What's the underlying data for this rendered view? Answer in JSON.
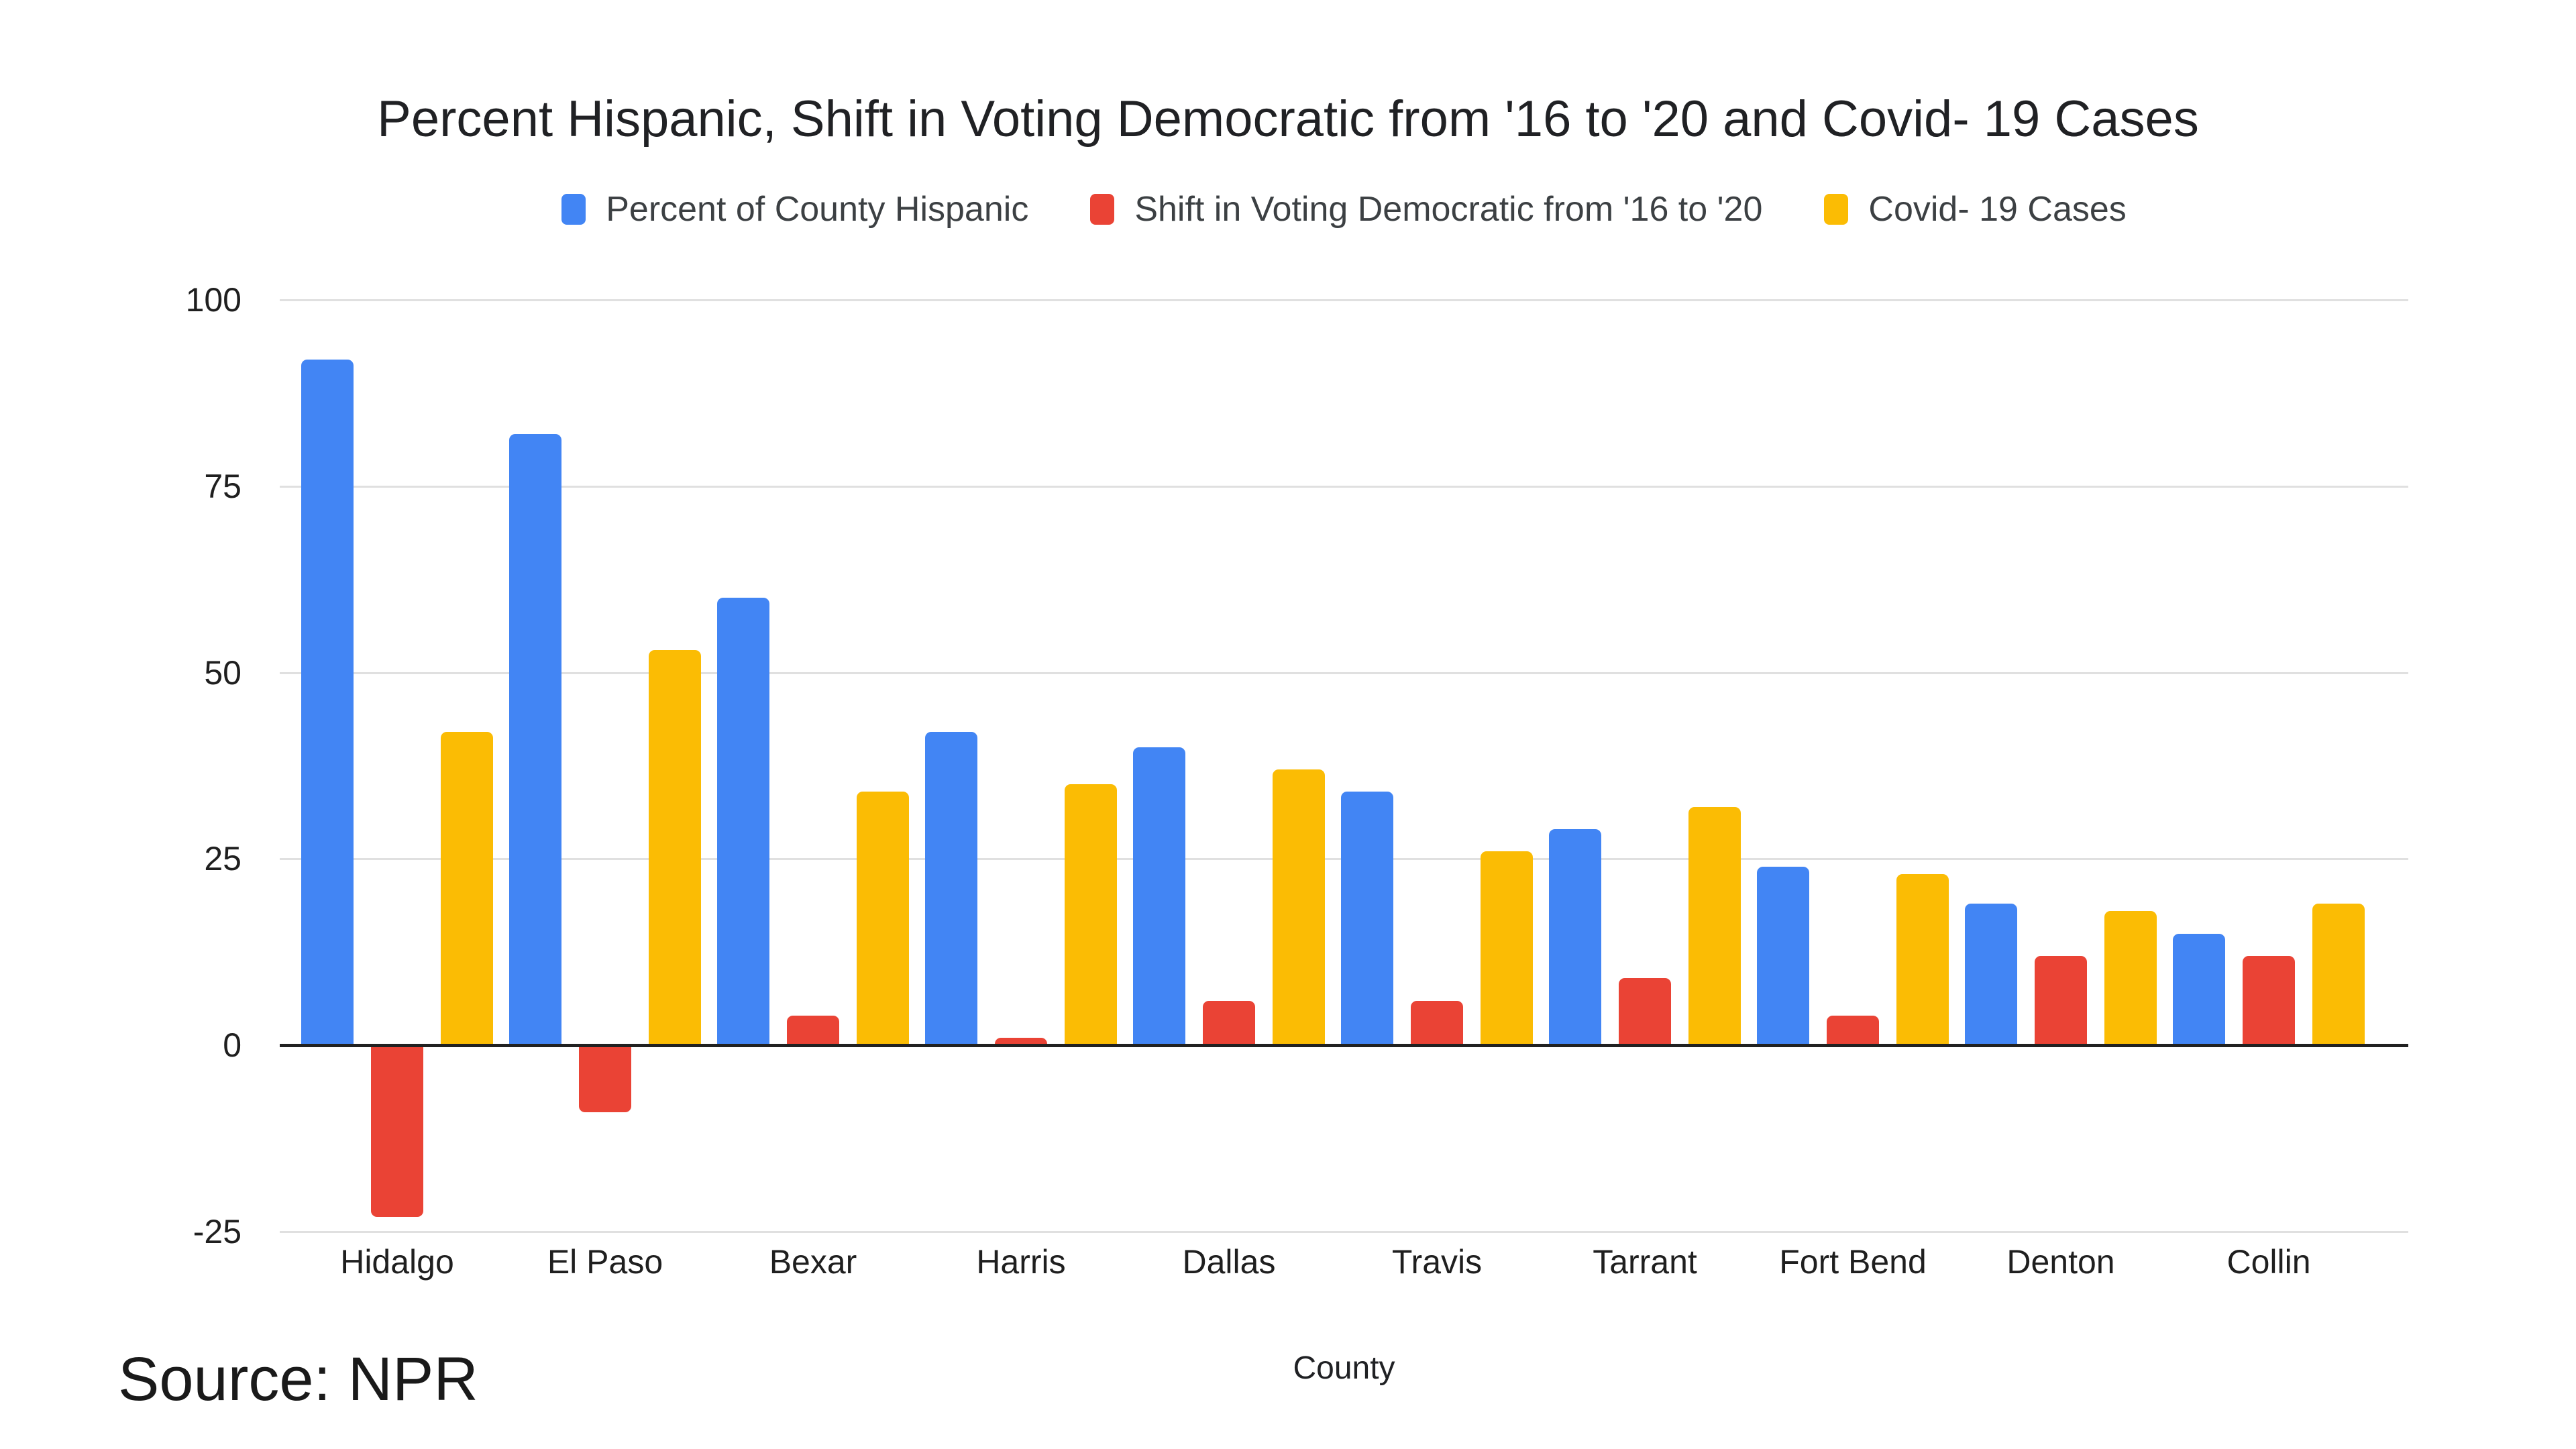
{
  "title": "Percent Hispanic, Shift in Voting Democratic from '16 to '20 and Covid- 19 Cases",
  "source_note": "Source: NPR",
  "colors": {
    "background": "#ffffff",
    "blue": "#4285F4",
    "red": "#EA4335",
    "yellow": "#FBBC04",
    "gridline": "#e0e0e0",
    "axis": "#212121",
    "text": "#1f1f1f"
  },
  "chart_data": {
    "type": "bar",
    "title": "Percent Hispanic, Shift in Voting Democratic from '16 to '20 and Covid- 19 Cases",
    "categories": [
      "Hidalgo",
      "El Paso",
      "Bexar",
      "Harris",
      "Dallas",
      "Travis",
      "Tarrant",
      "Fort Bend",
      "Denton",
      "Collin"
    ],
    "series": [
      {
        "key": "hispanic",
        "name": "Percent of County Hispanic",
        "color": "#4285F4",
        "values": [
          92,
          82,
          60,
          42,
          40,
          34,
          29,
          24,
          19,
          15
        ]
      },
      {
        "key": "shift",
        "name": "Shift in Voting Democratic from '16 to '20",
        "color": "#EA4335",
        "values": [
          -23,
          -9,
          4,
          1,
          6,
          6,
          9,
          4,
          12,
          12
        ]
      },
      {
        "key": "covid",
        "name": "Covid- 19 Cases",
        "color": "#FBBC04",
        "values": [
          42,
          53,
          34,
          35,
          37,
          26,
          32,
          23,
          18,
          19
        ]
      }
    ],
    "xlabel": "County",
    "ylabel": "",
    "ylim": [
      -25,
      100
    ],
    "y_ticks": [
      100,
      75,
      50,
      25,
      0,
      -25
    ],
    "grid": true,
    "legend_position": "top"
  }
}
